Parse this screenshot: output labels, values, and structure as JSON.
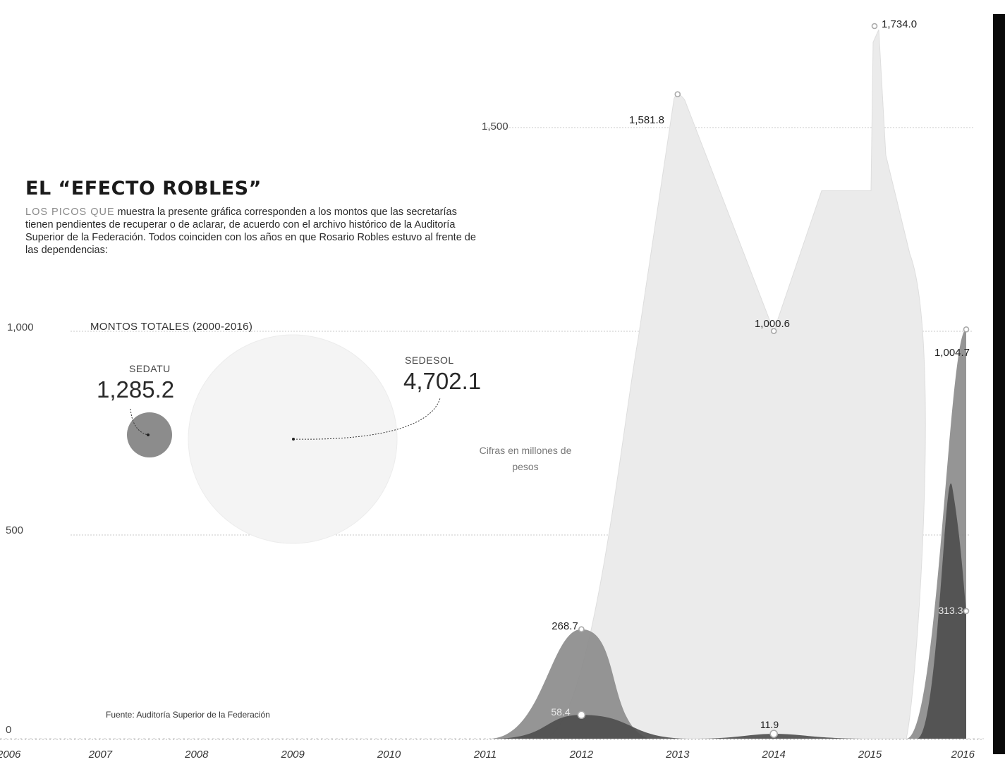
{
  "title": "EL “EFECTO ROBLES”",
  "subtitle_lead": "LOS PICOS QUE",
  "subtitle": " muestra la presente gráfica corresponden a los montos que las secretarías tienen pendientes de recuperar o de aclarar, de acuerdo con el archivo histórico de la Auditoría Superior de la Federación. Todos coinciden con los años en que Rosario Robles estuvo al frente de las dependencias:",
  "totals": {
    "title": "MONTOS TOTALES (2000-2016)",
    "sedatu_label": "SEDATU",
    "sedatu_value": "1,285.2",
    "sedesol_label": "SEDESOL",
    "sedesol_value": "4,702.1"
  },
  "note": "Cifras en millones de pesos",
  "source": "Fuente: Auditoría Superior de la Federación",
  "colors": {
    "sedesol": "#ebebeb",
    "sedatu": "#8c8c8c",
    "third_series": "#4d4d4d",
    "grid": "#c8c8c8",
    "right_bar": "#0a0a0a"
  },
  "chart_data": {
    "type": "area",
    "x": [
      2006,
      2007,
      2008,
      2009,
      2010,
      2011,
      2012,
      2013,
      2014,
      2015,
      2016
    ],
    "xlabels": [
      "2006",
      "2007",
      "2008",
      "2009",
      "2010",
      "2011",
      "2012",
      "2013",
      "2014",
      "2015",
      "2016"
    ],
    "ylim": [
      0,
      1800
    ],
    "yticks": [
      0,
      500,
      1000,
      1500
    ],
    "ytick_labels": [
      "0",
      "500",
      "1,000",
      "1,500"
    ],
    "grid": true,
    "series": [
      {
        "values": [
          0,
          0,
          0,
          0,
          0,
          0,
          0,
          1581.8,
          1000.6,
          1734.0,
          0
        ]
      },
      {
        "values": [
          0,
          0,
          0,
          0,
          0,
          0,
          268.7,
          0,
          0,
          0,
          1004.7
        ]
      },
      {
        "values": [
          0,
          0,
          0,
          0,
          0,
          0,
          58.4,
          0,
          11.9,
          0,
          313.3
        ]
      }
    ],
    "data_labels": [
      {
        "x": 2012,
        "value": 268.7,
        "text": "268.7"
      },
      {
        "x": 2012,
        "value": 58.4,
        "text": "58.4"
      },
      {
        "x": 2013,
        "value": 1581.8,
        "text": "1,581.8"
      },
      {
        "x": 2014,
        "value": 1000.6,
        "text": "1,000.6"
      },
      {
        "x": 2014,
        "value": 11.9,
        "text": "11.9"
      },
      {
        "x": 2015,
        "value": 1734.0,
        "text": "1,734.0"
      },
      {
        "x": 2016,
        "value": 1004.7,
        "text": "1,004.7"
      },
      {
        "x": 2016,
        "value": 313.3,
        "text": "313.3"
      }
    ]
  }
}
